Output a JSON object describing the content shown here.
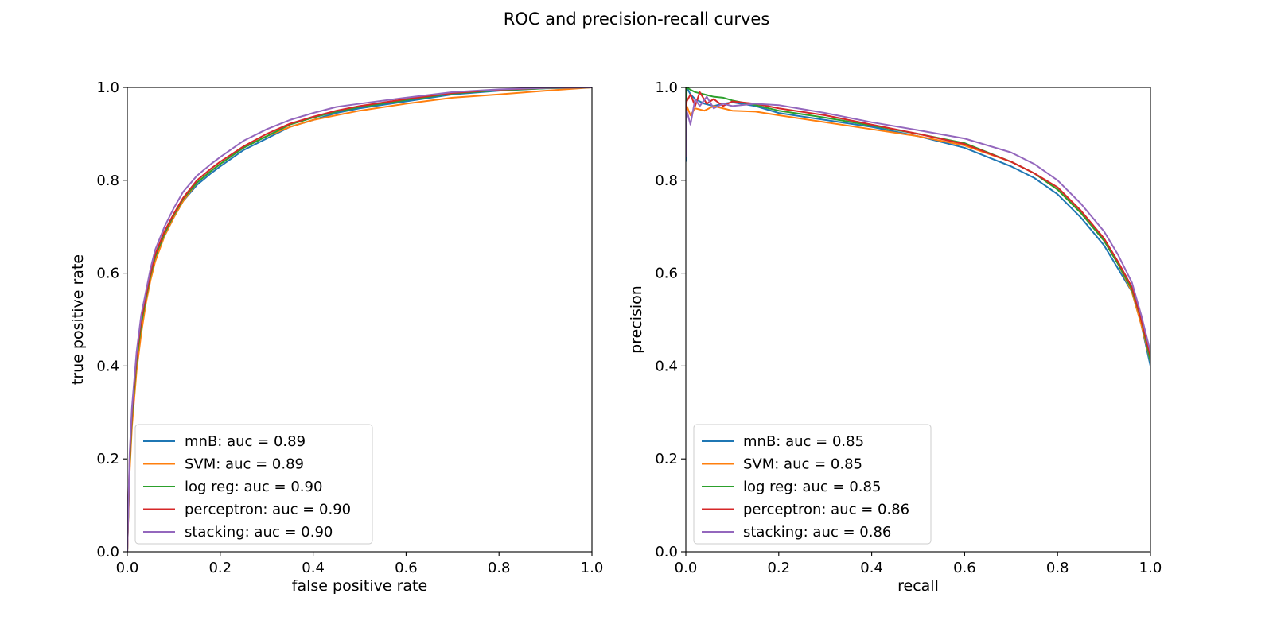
{
  "figure": {
    "title": "ROC and precision-recall curves"
  },
  "chart_data": [
    {
      "type": "line",
      "xlabel": "false positive rate",
      "ylabel": "true positive rate",
      "xlim": [
        0.0,
        1.0
      ],
      "ylim": [
        0.0,
        1.0
      ],
      "xticks": [
        "0.0",
        "0.2",
        "0.4",
        "0.6",
        "0.8",
        "1.0"
      ],
      "yticks": [
        "0.0",
        "0.2",
        "0.4",
        "0.6",
        "0.8",
        "1.0"
      ],
      "grid": false,
      "legend_position": "lower-left",
      "series": [
        {
          "name": "mnB",
          "label": "mnB: auc = 0.89",
          "color": "#1f77b4",
          "x": [
            0,
            0.005,
            0.01,
            0.02,
            0.03,
            0.04,
            0.05,
            0.06,
            0.08,
            0.1,
            0.12,
            0.15,
            0.18,
            0.2,
            0.25,
            0.3,
            0.35,
            0.4,
            0.45,
            0.5,
            0.6,
            0.7,
            0.8,
            0.9,
            1.0
          ],
          "y": [
            0,
            0.18,
            0.28,
            0.4,
            0.48,
            0.54,
            0.59,
            0.63,
            0.68,
            0.72,
            0.755,
            0.79,
            0.815,
            0.83,
            0.865,
            0.89,
            0.915,
            0.93,
            0.945,
            0.955,
            0.97,
            0.985,
            0.993,
            0.998,
            1.0
          ]
        },
        {
          "name": "SVM",
          "label": "SVM: auc = 0.89",
          "color": "#ff7f0e",
          "x": [
            0,
            0.005,
            0.01,
            0.02,
            0.03,
            0.04,
            0.05,
            0.06,
            0.08,
            0.1,
            0.12,
            0.15,
            0.18,
            0.2,
            0.25,
            0.3,
            0.35,
            0.4,
            0.45,
            0.5,
            0.6,
            0.7,
            0.8,
            0.9,
            1.0
          ],
          "y": [
            0,
            0.17,
            0.27,
            0.39,
            0.47,
            0.535,
            0.585,
            0.625,
            0.68,
            0.72,
            0.755,
            0.795,
            0.82,
            0.835,
            0.87,
            0.895,
            0.915,
            0.93,
            0.94,
            0.95,
            0.965,
            0.978,
            0.985,
            0.993,
            1.0
          ]
        },
        {
          "name": "log reg",
          "label": "log reg: auc = 0.90",
          "color": "#2ca02c",
          "x": [
            0,
            0.005,
            0.01,
            0.02,
            0.03,
            0.04,
            0.05,
            0.06,
            0.08,
            0.1,
            0.12,
            0.15,
            0.18,
            0.2,
            0.25,
            0.3,
            0.35,
            0.4,
            0.45,
            0.5,
            0.6,
            0.7,
            0.8,
            0.9,
            1.0
          ],
          "y": [
            0,
            0.19,
            0.29,
            0.41,
            0.49,
            0.545,
            0.595,
            0.635,
            0.685,
            0.725,
            0.76,
            0.795,
            0.82,
            0.835,
            0.87,
            0.895,
            0.92,
            0.935,
            0.948,
            0.958,
            0.973,
            0.987,
            0.994,
            0.998,
            1.0
          ]
        },
        {
          "name": "perceptron",
          "label": "perceptron: auc = 0.90",
          "color": "#d62728",
          "x": [
            0,
            0.005,
            0.01,
            0.02,
            0.03,
            0.04,
            0.05,
            0.06,
            0.08,
            0.1,
            0.12,
            0.15,
            0.18,
            0.2,
            0.25,
            0.3,
            0.35,
            0.4,
            0.45,
            0.5,
            0.6,
            0.7,
            0.8,
            0.9,
            1.0
          ],
          "y": [
            0,
            0.2,
            0.3,
            0.42,
            0.5,
            0.55,
            0.6,
            0.64,
            0.69,
            0.728,
            0.762,
            0.8,
            0.825,
            0.84,
            0.873,
            0.9,
            0.922,
            0.937,
            0.95,
            0.96,
            0.975,
            0.988,
            0.995,
            0.999,
            1.0
          ]
        },
        {
          "name": "stacking",
          "label": "stacking: auc = 0.90",
          "color": "#9467bd",
          "x": [
            0,
            0.005,
            0.01,
            0.02,
            0.03,
            0.04,
            0.05,
            0.06,
            0.08,
            0.1,
            0.12,
            0.15,
            0.18,
            0.2,
            0.25,
            0.3,
            0.35,
            0.4,
            0.45,
            0.5,
            0.6,
            0.7,
            0.8,
            0.9,
            1.0
          ],
          "y": [
            0,
            0.21,
            0.31,
            0.43,
            0.51,
            0.56,
            0.61,
            0.65,
            0.7,
            0.74,
            0.775,
            0.81,
            0.835,
            0.85,
            0.885,
            0.91,
            0.93,
            0.945,
            0.958,
            0.965,
            0.978,
            0.99,
            0.996,
            0.999,
            1.0
          ]
        }
      ]
    },
    {
      "type": "line",
      "xlabel": "recall",
      "ylabel": "precision",
      "xlim": [
        0.0,
        1.0
      ],
      "ylim": [
        0.0,
        1.0
      ],
      "xticks": [
        "0.0",
        "0.2",
        "0.4",
        "0.6",
        "0.8",
        "1.0"
      ],
      "yticks": [
        "0.0",
        "0.2",
        "0.4",
        "0.6",
        "0.8",
        "1.0"
      ],
      "grid": false,
      "legend_position": "lower-left",
      "series": [
        {
          "name": "mnB",
          "label": "mnB: auc = 0.85",
          "color": "#1f77b4",
          "x": [
            0,
            0.002,
            0.01,
            0.02,
            0.04,
            0.06,
            0.08,
            0.1,
            0.15,
            0.2,
            0.3,
            0.4,
            0.5,
            0.6,
            0.7,
            0.75,
            0.8,
            0.85,
            0.9,
            0.93,
            0.96,
            0.98,
            1.0
          ],
          "y": [
            0.84,
            1.0,
            0.985,
            0.975,
            0.965,
            0.96,
            0.965,
            0.968,
            0.96,
            0.945,
            0.93,
            0.915,
            0.895,
            0.87,
            0.83,
            0.805,
            0.77,
            0.72,
            0.66,
            0.61,
            0.56,
            0.49,
            0.4
          ]
        },
        {
          "name": "SVM",
          "label": "SVM: auc = 0.85",
          "color": "#ff7f0e",
          "x": [
            0,
            0.002,
            0.01,
            0.02,
            0.04,
            0.06,
            0.08,
            0.1,
            0.15,
            0.2,
            0.3,
            0.4,
            0.5,
            0.6,
            0.7,
            0.75,
            0.8,
            0.85,
            0.9,
            0.93,
            0.96,
            0.98,
            1.0
          ],
          "y": [
            0.92,
            0.96,
            0.94,
            0.955,
            0.95,
            0.96,
            0.955,
            0.95,
            0.948,
            0.94,
            0.925,
            0.91,
            0.895,
            0.875,
            0.84,
            0.815,
            0.78,
            0.73,
            0.67,
            0.62,
            0.56,
            0.49,
            0.41
          ]
        },
        {
          "name": "log reg",
          "label": "log reg: auc = 0.85",
          "color": "#2ca02c",
          "x": [
            0,
            0.002,
            0.01,
            0.02,
            0.04,
            0.06,
            0.08,
            0.1,
            0.15,
            0.2,
            0.3,
            0.4,
            0.5,
            0.6,
            0.7,
            0.75,
            0.8,
            0.85,
            0.9,
            0.93,
            0.96,
            0.98,
            1.0
          ],
          "y": [
            0.93,
            1.0,
            0.995,
            0.99,
            0.985,
            0.98,
            0.978,
            0.972,
            0.962,
            0.95,
            0.935,
            0.918,
            0.9,
            0.88,
            0.84,
            0.815,
            0.78,
            0.73,
            0.67,
            0.62,
            0.565,
            0.5,
            0.41
          ]
        },
        {
          "name": "perceptron",
          "label": "perceptron: auc = 0.86",
          "color": "#d62728",
          "x": [
            0,
            0.002,
            0.01,
            0.02,
            0.03,
            0.045,
            0.06,
            0.08,
            0.1,
            0.15,
            0.2,
            0.3,
            0.4,
            0.5,
            0.6,
            0.7,
            0.75,
            0.8,
            0.85,
            0.9,
            0.93,
            0.96,
            0.98,
            1.0
          ],
          "y": [
            0.93,
            0.97,
            0.985,
            0.96,
            0.99,
            0.965,
            0.975,
            0.96,
            0.97,
            0.965,
            0.955,
            0.94,
            0.92,
            0.9,
            0.878,
            0.84,
            0.815,
            0.785,
            0.735,
            0.675,
            0.625,
            0.57,
            0.5,
            0.42
          ]
        },
        {
          "name": "stacking",
          "label": "stacking: auc = 0.86",
          "color": "#9467bd",
          "x": [
            0,
            0.002,
            0.01,
            0.02,
            0.03,
            0.045,
            0.06,
            0.08,
            0.1,
            0.15,
            0.2,
            0.3,
            0.4,
            0.5,
            0.6,
            0.7,
            0.75,
            0.8,
            0.85,
            0.9,
            0.93,
            0.96,
            0.98,
            1.0
          ],
          "y": [
            0.85,
            0.95,
            0.92,
            0.975,
            0.96,
            0.98,
            0.955,
            0.965,
            0.96,
            0.965,
            0.962,
            0.945,
            0.925,
            0.908,
            0.89,
            0.86,
            0.835,
            0.8,
            0.75,
            0.69,
            0.64,
            0.58,
            0.51,
            0.43
          ]
        }
      ]
    }
  ]
}
